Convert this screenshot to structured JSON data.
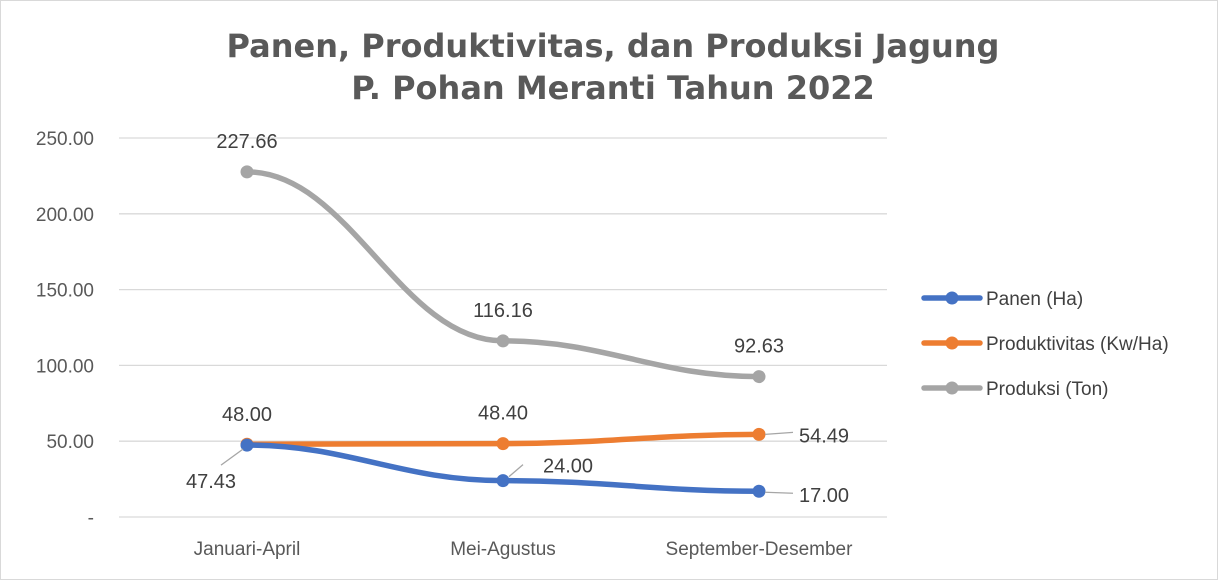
{
  "chart_data": {
    "type": "line",
    "title": [
      "Panen, Produktivitas, dan Produksi Jagung",
      "P. Pohan Meranti Tahun 2022"
    ],
    "categories": [
      "Januari-April",
      "Mei-Agustus",
      "September-Desember"
    ],
    "ylim": [
      0,
      250
    ],
    "yticks": [
      0,
      50,
      100,
      150,
      200,
      250
    ],
    "ytick_labels": [
      "-",
      "50.00",
      "100.00",
      "150.00",
      "200.00",
      "250.00"
    ],
    "grid": true,
    "legend_position": "right",
    "series": [
      {
        "name": "Panen (Ha)",
        "color": "#4472c4",
        "values": [
          47.43,
          24.0,
          17.0
        ],
        "labels": [
          "47.43",
          "24.00",
          "17.00"
        ]
      },
      {
        "name": "Produktivitas (Kw/Ha)",
        "color": "#ed7d31",
        "values": [
          48.0,
          48.4,
          54.49
        ],
        "labels": [
          "48.00",
          "48.40",
          "54.49"
        ]
      },
      {
        "name": "Produksi (Ton)",
        "color": "#a5a5a5",
        "values": [
          227.66,
          116.16,
          92.63
        ],
        "labels": [
          "227.66",
          "116.16",
          "92.63"
        ]
      }
    ]
  }
}
